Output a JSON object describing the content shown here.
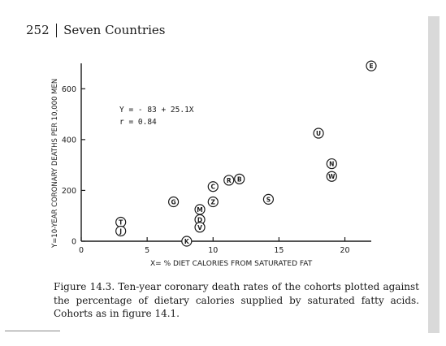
{
  "page": {
    "number": "252",
    "running_head": "Seven Countries"
  },
  "chart_data": {
    "type": "scatter",
    "xlabel": "X= % DIET CALORIES FROM SATURATED FAT",
    "ylabel": "Y=10-YEAR CORONARY DEATHS PER 10,000 MEN",
    "xlim": [
      0,
      22
    ],
    "ylim": [
      0,
      700
    ],
    "xticks": [
      0,
      5,
      10,
      15,
      20
    ],
    "yticks": [
      0,
      200,
      400,
      600
    ],
    "grid": false,
    "equation": "Y = - 83 + 25.1X",
    "r_text": "r = 0.84",
    "points": [
      {
        "label": "E",
        "x": 22.0,
        "y": 690
      },
      {
        "label": "U",
        "x": 18.0,
        "y": 425
      },
      {
        "label": "N",
        "x": 19.0,
        "y": 305
      },
      {
        "label": "W",
        "x": 19.0,
        "y": 255
      },
      {
        "label": "R",
        "x": 11.2,
        "y": 240
      },
      {
        "label": "B",
        "x": 12.0,
        "y": 245
      },
      {
        "label": "C",
        "x": 10.0,
        "y": 215
      },
      {
        "label": "S",
        "x": 14.2,
        "y": 165
      },
      {
        "label": "G",
        "x": 7.0,
        "y": 155
      },
      {
        "label": "Z",
        "x": 10.0,
        "y": 155
      },
      {
        "label": "M",
        "x": 9.0,
        "y": 125
      },
      {
        "label": "D",
        "x": 9.0,
        "y": 85
      },
      {
        "label": "V",
        "x": 9.0,
        "y": 55
      },
      {
        "label": "T",
        "x": 3.0,
        "y": 75
      },
      {
        "label": "J",
        "x": 3.0,
        "y": 40
      },
      {
        "label": "K",
        "x": 8.0,
        "y": 0
      }
    ]
  },
  "caption": "Figure 14.3. Ten-year coronary death rates of the cohorts plotted against the percentage of dietary calories supplied by saturated fatty acids. Cohorts as in figure 14.1."
}
